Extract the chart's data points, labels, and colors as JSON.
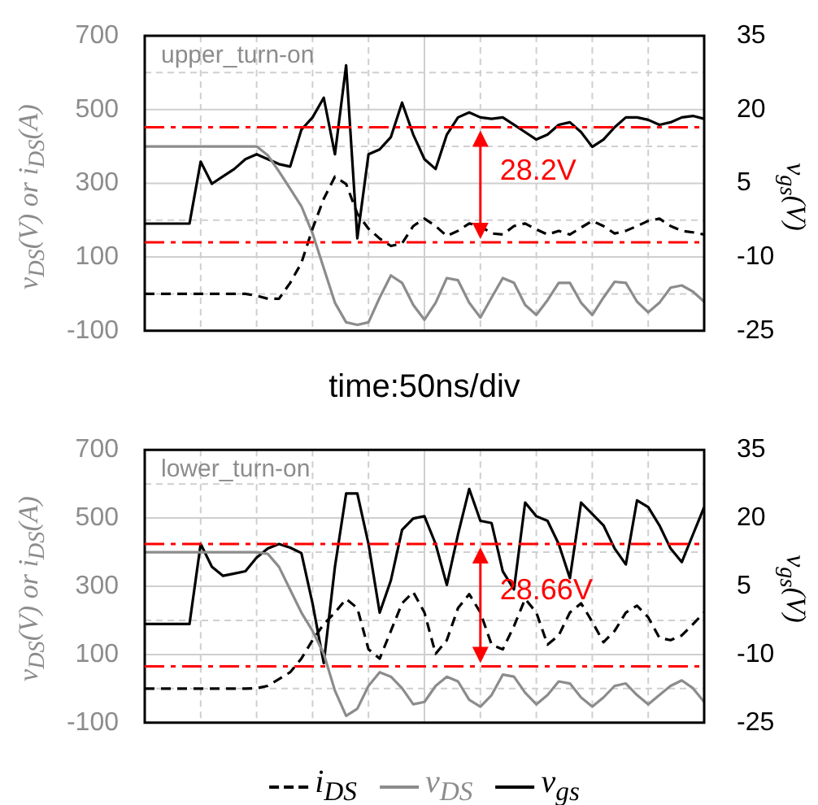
{
  "chart_data": [
    {
      "type": "line",
      "title": "upper_turn-on",
      "xlabel": "time:50ns/div",
      "ylabel": "v$_{DS}$(V) or i$_{DS}$(A)",
      "y2label": "v$_{gs}$(V)",
      "categories": [
        null,
        null,
        null,
        null,
        null,
        null,
        null,
        null,
        null,
        null,
        null,
        null,
        null,
        null,
        null,
        null,
        null,
        null,
        null,
        null,
        null,
        null,
        null,
        null,
        null,
        null,
        null,
        null,
        null,
        null,
        null,
        null,
        null,
        null,
        null,
        null,
        null,
        null,
        null,
        null,
        null,
        null,
        null,
        null,
        null,
        null,
        null,
        null,
        null,
        null,
        null
      ],
      "series": [
        {
          "color": "#000000",
          "line_style": "dashed",
          "values": [
            0,
            0,
            0,
            0,
            0,
            0,
            0,
            0,
            0,
            0,
            -5,
            -13,
            -13,
            30,
            84,
            177,
            258,
            318,
            298,
            218,
            177,
            150,
            130,
            137,
            184,
            204,
            184,
            157,
            171,
            191,
            184,
            164,
            161,
            184,
            191,
            175,
            161,
            171,
            161,
            180,
            198,
            184,
            164,
            171,
            184,
            198,
            204,
            184,
            171,
            167,
            161
          ]
        },
        {
          "color": "#8c8c8c",
          "values": [
            400,
            400,
            400,
            400,
            400,
            400,
            400,
            400,
            400,
            400,
            400,
            376,
            332,
            285,
            238,
            164,
            70,
            -24,
            -77,
            -84,
            -77,
            -10,
            50,
            30,
            -30,
            -70,
            -24,
            43,
            37,
            -24,
            -64,
            -10,
            43,
            30,
            -30,
            -57,
            -17,
            30,
            30,
            -24,
            -57,
            -10,
            33,
            30,
            -21,
            -50,
            -24,
            17,
            23,
            6,
            -21
          ]
        },
        {
          "color": "#000000",
          "axis": "y2",
          "values": [
            -3.2,
            -3.2,
            -3.2,
            -3.2,
            -3.2,
            9.4,
            4.9,
            6.4,
            7.9,
            9.9,
            10.9,
            9.9,
            8.9,
            8.4,
            15.9,
            18.4,
            22.4,
            10.9,
            29,
            -6.2,
            10.9,
            11.9,
            14.4,
            21.4,
            14.9,
            9.9,
            7.9,
            14.9,
            18.4,
            19.4,
            18.4,
            18.1,
            18.4,
            16.9,
            15.4,
            13.9,
            14.9,
            16.9,
            17.4,
            15.4,
            12.4,
            13.9,
            16.4,
            18.4,
            18.4,
            17.9,
            16.9,
            17.4,
            18.4,
            18.7,
            18.1
          ]
        }
      ],
      "ylim": [
        -100,
        700
      ],
      "yticks": [
        -100,
        {
          "value": 0,
          "label": null
        },
        100,
        {
          "value": 200,
          "label": null
        },
        300,
        {
          "value": 400,
          "label": null
        },
        500,
        {
          "value": 600,
          "label": null
        },
        700
      ],
      "y2lim": [
        -25,
        35
      ],
      "y2ticks": [
        -25,
        -10,
        5,
        20,
        35
      ],
      "grid": true,
      "ref_lines": [
        {
          "axis": "y2",
          "value": 16.4,
          "color": "#ff0000",
          "line_style": "dashed"
        },
        {
          "axis": "y2",
          "value": -7.0,
          "color": "#ff0000",
          "line_style": "dashed"
        }
      ],
      "annotations": [
        "28.2V"
      ]
    },
    {
      "type": "line",
      "title": "lower_turn-on",
      "ylabel": "v$_{DS}$(V) or i$_{DS}$(A)",
      "y2label": "v$_{gs}$(V)",
      "categories": [
        null,
        null,
        null,
        null,
        null,
        null,
        null,
        null,
        null,
        null,
        null,
        null,
        null,
        null,
        null,
        null,
        null,
        null,
        null,
        null,
        null,
        null,
        null,
        null,
        null,
        null,
        null,
        null,
        null,
        null,
        null,
        null,
        null,
        null,
        null,
        null,
        null,
        null,
        null,
        null,
        null,
        null,
        null,
        null,
        null,
        null,
        null,
        null,
        null,
        null,
        null
      ],
      "series": [
        {
          "name": "i$_{DS}$",
          "color": "#000000",
          "line_style": "dashed",
          "values": [
            0,
            0,
            0,
            0,
            0,
            0,
            0,
            0,
            0,
            0,
            1,
            8,
            28,
            48,
            88,
            142,
            189,
            223,
            263,
            236,
            115,
            88,
            169,
            250,
            283,
            223,
            102,
            142,
            236,
            277,
            223,
            129,
            115,
            183,
            263,
            223,
            129,
            156,
            223,
            250,
            196,
            136,
            169,
            223,
            243,
            209,
            149,
            142,
            156,
            189,
            223
          ]
        },
        {
          "name": "v$_{DS}$",
          "color": "#8c8c8c",
          "values": [
            400,
            400,
            400,
            400,
            400,
            400,
            400,
            400,
            400,
            400,
            400,
            395,
            357,
            290,
            223,
            169,
            102,
            -6,
            -80,
            -59,
            8,
            48,
            35,
            1,
            -46,
            -39,
            8,
            35,
            21,
            -33,
            -53,
            -19,
            41,
            35,
            -12,
            -46,
            -19,
            21,
            15,
            -26,
            -53,
            -26,
            8,
            15,
            -19,
            -46,
            -19,
            8,
            24,
            1,
            -39
          ]
        },
        {
          "name": "v$_{gs}$",
          "color": "#000000",
          "axis": "y2",
          "values": [
            -3.3,
            -3.3,
            -3.3,
            -3.3,
            -3.3,
            14.3,
            9.3,
            7.3,
            7.8,
            8.3,
            11.3,
            13.3,
            14.3,
            13.5,
            12.3,
            1.2,
            -11.9,
            9.3,
            25.4,
            25.4,
            14.3,
            -0.8,
            6.3,
            17.4,
            19.9,
            20.4,
            14.3,
            5.3,
            16.4,
            26.4,
            19.4,
            18.9,
            8.3,
            4.3,
            23.4,
            20.4,
            19.4,
            14.3,
            6.8,
            23.4,
            20.9,
            18.4,
            13.3,
            9.8,
            23.9,
            22.4,
            18.4,
            13.3,
            10.3,
            16.4,
            22.4
          ]
        }
      ],
      "ylim": [
        -100,
        700
      ],
      "yticks": [
        -100,
        {
          "value": 0,
          "label": null
        },
        100,
        {
          "value": 200,
          "label": null
        },
        300,
        {
          "value": 400,
          "label": null
        },
        500,
        {
          "value": 600,
          "label": null
        },
        700
      ],
      "y2lim": [
        -25,
        35
      ],
      "y2ticks": [
        -25,
        -10,
        5,
        20,
        35
      ],
      "grid": true,
      "legend": "bottom",
      "ref_lines": [
        {
          "axis": "y2",
          "value": 14.3,
          "color": "#ff0000",
          "line_style": "dashed"
        },
        {
          "axis": "y2",
          "value": -12.6,
          "color": "#ff0000",
          "line_style": "dashed"
        }
      ],
      "annotations": [
        "28.66V"
      ]
    }
  ]
}
